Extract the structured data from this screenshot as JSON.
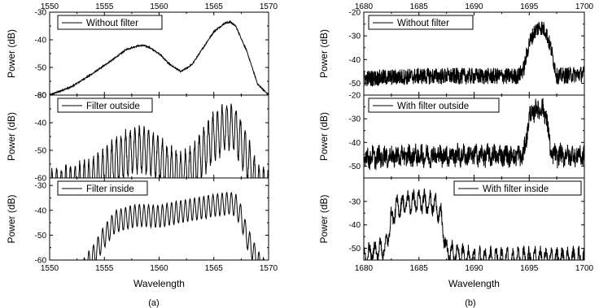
{
  "chart_data": [
    {
      "panel": "(a)",
      "type": "line",
      "xlabel": "Wavelength",
      "ylabel": "Power (dB)",
      "xlim": [
        1550,
        1570
      ],
      "x_ticks": [
        1550,
        1555,
        1560,
        1565,
        1570
      ],
      "top_axis_tick_labels": true,
      "subplots": [
        {
          "legend": "Without filter",
          "ylim": [
            -60,
            -30
          ],
          "y_ticks": [
            -60,
            -50,
            -40,
            -30
          ],
          "series": [
            {
              "name": "Without filter",
              "x": [
                1550,
                1552,
                1554,
                1556,
                1557,
                1558,
                1558.5,
                1559,
                1560,
                1561,
                1562,
                1563,
                1564,
                1565,
                1566,
                1566.5,
                1567,
                1568,
                1569,
                1570
              ],
              "values": [
                -60,
                -57,
                -52,
                -46.5,
                -43.5,
                -42.2,
                -42,
                -42.5,
                -45,
                -49,
                -51.5,
                -49,
                -43,
                -37,
                -34,
                -33.5,
                -35,
                -44,
                -56,
                -60
              ],
              "fringe_period": 0,
              "fringe_depth": 0,
              "noise": 0.25
            }
          ]
        },
        {
          "legend": "Filter outside",
          "ylim": [
            -60,
            -30
          ],
          "y_ticks": [
            -60,
            -50,
            -40,
            -30
          ],
          "series": [
            {
              "name": "Filter outside",
              "x": [
                1550,
                1552,
                1554,
                1556,
                1557,
                1558,
                1558.5,
                1559,
                1560,
                1561,
                1562,
                1563,
                1564,
                1565,
                1566,
                1566.5,
                1567,
                1568,
                1569,
                1570
              ],
              "values": [
                -57,
                -56,
                -53,
                -46.5,
                -43.5,
                -42.2,
                -42,
                -42.5,
                -45,
                -49,
                -51.5,
                -49,
                -43,
                -37,
                -34,
                -33.5,
                -35,
                -44,
                -56,
                -57
              ],
              "fringe_period": 0.42,
              "fringe_depth": 16,
              "noise": 1.6
            }
          ]
        },
        {
          "legend": "Filter inside",
          "ylim": [
            -60,
            -27
          ],
          "y_ticks": [
            -60,
            -50,
            -40,
            -30
          ],
          "series": [
            {
              "name": "Filter inside",
              "x": [
                1550,
                1552,
                1553,
                1554,
                1555,
                1556,
                1558,
                1560,
                1562,
                1564,
                1565,
                1566,
                1566.5,
                1567,
                1567.5,
                1568,
                1569,
                1570
              ],
              "values": [
                -72,
                -65,
                -60,
                -54,
                -46,
                -40,
                -37.5,
                -38,
                -36,
                -34.5,
                -33.5,
                -33,
                -32.5,
                -33.5,
                -38,
                -46,
                -56,
                -62
              ],
              "fringe_period": 0.42,
              "fringe_depth": 9,
              "noise": 0.2
            }
          ]
        }
      ]
    },
    {
      "panel": "(b)",
      "type": "line",
      "xlabel": "Wavelength",
      "ylabel": "Power (dB)",
      "xlim": [
        1680,
        1700
      ],
      "x_ticks": [
        1680,
        1685,
        1690,
        1695,
        1700
      ],
      "top_axis_tick_labels": true,
      "subplots": [
        {
          "legend": "Without filter",
          "ylim": [
            -55,
            -20
          ],
          "y_ticks": [
            -50,
            -40,
            -30,
            -20
          ],
          "series": [
            {
              "name": "Without filter",
              "x": [
                1680,
                1685,
                1690,
                1694,
                1694.5,
                1695,
                1695.5,
                1696,
                1696.5,
                1697,
                1697.5,
                1700
              ],
              "values": [
                -48,
                -47,
                -47,
                -47,
                -44,
                -33,
                -28,
                -26,
                -28,
                -36,
                -47,
                -46
              ],
              "fringe_period": 0,
              "fringe_depth": 0,
              "noise": 3.5
            }
          ]
        },
        {
          "legend": "With filter outside",
          "ylim": [
            -55,
            -20
          ],
          "y_ticks": [
            -50,
            -40,
            -30,
            -20
          ],
          "series": [
            {
              "name": "With filter outside",
              "x": [
                1680,
                1685,
                1690,
                1694,
                1694.5,
                1695,
                1695.5,
                1696,
                1696.5,
                1697,
                1700
              ],
              "values": [
                -45,
                -44,
                -44,
                -44,
                -44,
                -28,
                -25,
                -24,
                -26,
                -44,
                -44
              ],
              "fringe_period": 0.55,
              "fringe_depth": 3,
              "noise": 4
            }
          ]
        },
        {
          "legend": "With filter inside",
          "ylim": [
            -55,
            -20
          ],
          "y_ticks": [
            -50,
            -40,
            -30
          ],
          "series": [
            {
              "name": "With filter inside",
              "x": [
                1680,
                1682,
                1682.5,
                1683,
                1684,
                1685,
                1686,
                1686.5,
                1687,
                1687.5,
                1690,
                1695,
                1700
              ],
              "values": [
                -50,
                -46,
                -34,
                -29,
                -27,
                -26.5,
                -27,
                -28,
                -33,
                -48,
                -51,
                -51,
                -51
              ],
              "fringe_period": 0.5,
              "fringe_depth": 7,
              "noise": 2.5
            }
          ]
        }
      ]
    }
  ],
  "captions": [
    "(a)",
    "(b)"
  ]
}
